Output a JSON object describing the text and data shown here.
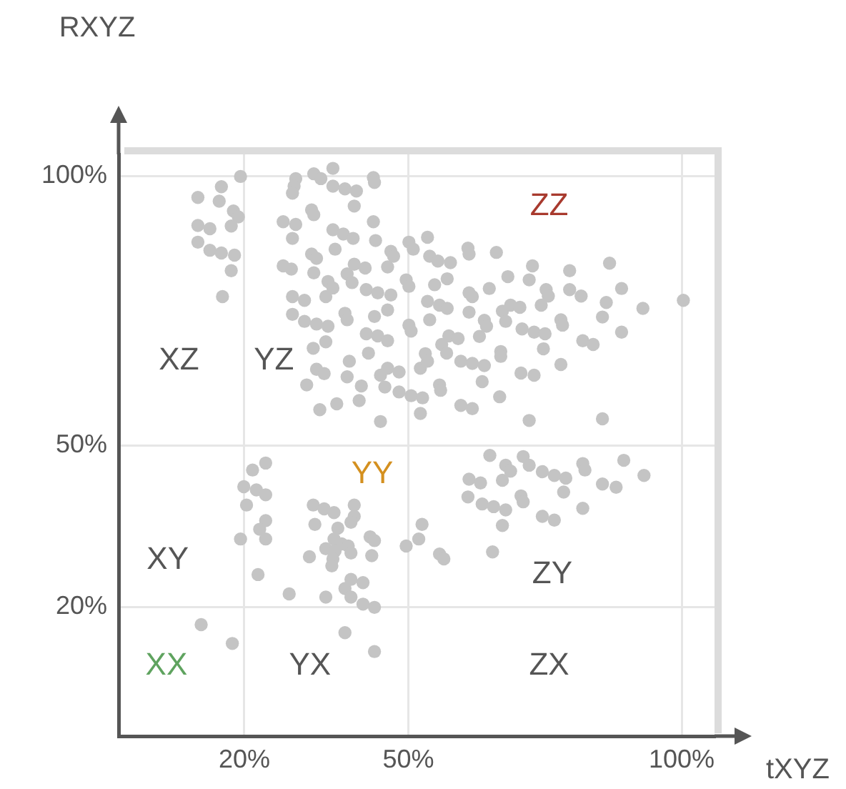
{
  "chart_data": {
    "type": "scatter",
    "xlabel": "tXYZ",
    "ylabel": "RXYZ",
    "color": "#c4c4c4",
    "marker": "circle",
    "grid": true,
    "xlim": [
      -3,
      106
    ],
    "ylim": [
      -4,
      104
    ],
    "xticks": [
      {
        "value": 20,
        "label": "20%"
      },
      {
        "value": 50,
        "label": "50%"
      },
      {
        "value": 100,
        "label": "100%"
      }
    ],
    "yticks": [
      {
        "value": 20,
        "label": "20%"
      },
      {
        "value": 50,
        "label": "50%"
      },
      {
        "value": 100,
        "label": "100%"
      }
    ],
    "annotations": [
      "XZ",
      "YZ",
      "ZZ",
      "XY",
      "YY",
      "ZY",
      "XX",
      "YX",
      "ZX"
    ],
    "x": [
      19.3,
      15.8,
      11.5,
      15.4,
      18.0,
      18.9,
      11.5,
      13.7,
      17.6,
      11.5,
      13.7,
      15.8,
      18.2,
      17.6,
      16.0,
      29.4,
      32.7,
      34.0,
      36.2,
      29.1,
      28.8,
      36.2,
      38.4,
      40.5,
      43.6,
      43.8,
      40.1,
      32.3,
      32.7,
      27.1,
      29.4,
      43.6,
      28.8,
      36.2,
      38.1,
      39.9,
      44.0,
      36.6,
      32.3,
      33.2,
      27.1,
      28.6,
      32.7,
      40.1,
      42.1,
      38.8,
      39.7,
      46.8,
      47.3,
      46.2,
      35.3,
      36.2,
      34.9,
      42.3,
      44.4,
      46.8,
      28.8,
      31.0,
      38.4,
      38.8,
      43.8,
      46.2,
      28.8,
      31.0,
      33.2,
      35.3,
      42.3,
      44.4,
      46.2,
      32.6,
      34.9,
      42.7,
      39.2,
      33.2,
      34.6,
      38.8,
      44.9,
      46.2,
      48.3,
      31.4,
      41.4,
      45.7,
      48.3,
      50.5,
      52.6,
      41.0,
      36.9,
      33.8,
      52.2,
      44.9,
      50.1,
      50.9,
      49.6,
      50.1,
      50.1,
      50.5,
      53.1,
      52.2,
      53.5,
      53.9,
      55.4,
      57.7,
      60.9,
      61.1,
      66.1,
      57.1,
      54.8,
      53.5,
      55.7,
      57.1,
      53.9,
      61.1,
      61.7,
      64.8,
      68.2,
      72.1,
      72.7,
      79.5,
      86.8,
      89.0,
      79.5,
      75.2,
      75.6,
      81.6,
      86.2,
      92.9,
      100.3,
      61.1,
      63.9,
      64.3,
      67.2,
      68.7,
      70.4,
      67.8,
      74.3,
      77.9,
      78.2,
      85.5,
      70.8,
      73.0,
      75.0,
      89.0,
      57.4,
      59.1,
      56.1,
      57.0,
      63.0,
      66.9,
      66.9,
      59.6,
      61.7,
      63.9,
      74.7,
      81.9,
      83.8,
      77.9,
      70.6,
      73.0,
      63.5,
      55.7,
      55.9,
      66.7,
      59.6,
      61.7,
      72.1,
      85.5,
      53.5,
      23.9,
      21.5,
      19.9,
      22.2,
      23.9,
      20.4,
      23.9,
      22.8,
      23.9,
      19.3,
      22.5,
      28.2,
      32.6,
      34.6,
      36.4,
      40.1,
      40.1,
      39.5,
      32.9,
      37.1,
      36.4,
      37.8,
      39.0,
      34.9,
      36.6,
      39.5,
      36.2,
      36.0,
      31.9,
      43.0,
      43.8,
      43.3,
      49.6,
      39.5,
      41.7,
      38.4,
      39.5,
      34.9,
      41.7,
      43.8,
      12.1,
      17.8,
      38.4,
      43.8,
      52.5,
      51.9,
      55.7,
      56.5,
      65.4,
      64.9,
      67.8,
      68.7,
      67.2,
      61.1,
      63.2,
      71.0,
      72.1,
      74.5,
      76.7,
      78.8,
      78.4,
      81.9,
      82.3,
      89.4,
      93.1,
      85.5,
      88.0,
      60.9,
      63.5,
      65.6,
      67.8,
      70.6,
      71.0,
      67.2,
      74.5,
      76.7,
      81.9
    ],
    "values": [
      99.9,
      98.0,
      96.0,
      95.3,
      93.5,
      92.4,
      90.8,
      90.2,
      90.7,
      87.7,
      86.2,
      85.7,
      85.3,
      82.4,
      77.6,
      99.5,
      100.4,
      99.5,
      101.4,
      98.1,
      96.8,
      98.1,
      97.6,
      97.2,
      99.7,
      98.8,
      94.4,
      93.7,
      92.8,
      91.5,
      91.0,
      91.5,
      88.4,
      90.0,
      89.2,
      88.4,
      88.0,
      86.4,
      85.5,
      84.7,
      83.3,
      82.7,
      82.0,
      83.6,
      82.9,
      81.8,
      80.2,
      86.0,
      85.1,
      83.1,
      80.4,
      79.2,
      77.6,
      78.9,
      78.3,
      77.9,
      77.6,
      76.9,
      74.5,
      73.3,
      73.9,
      75.1,
      74.3,
      73.0,
      72.5,
      72.1,
      70.7,
      70.3,
      69.4,
      68.0,
      69.2,
      67.1,
      65.6,
      64.1,
      63.3,
      62.7,
      63.0,
      64.3,
      63.6,
      61.2,
      61.0,
      60.8,
      59.9,
      59.2,
      58.8,
      58.3,
      57.7,
      56.6,
      55.9,
      54.4,
      87.7,
      86.4,
      80.7,
      79.5,
      72.3,
      71.2,
      67.0,
      64.3,
      88.6,
      85.1,
      84.2,
      83.9,
      86.6,
      85.5,
      85.8,
      80.9,
      79.8,
      76.7,
      76.0,
      75.4,
      73.3,
      78.3,
      77.6,
      79.1,
      81.3,
      80.7,
      83.3,
      82.4,
      83.8,
      79.1,
      78.9,
      78.9,
      77.7,
      77.7,
      76.5,
      75.4,
      76.9,
      74.7,
      73.2,
      72.1,
      74.9,
      76.0,
      75.6,
      73.0,
      76.0,
      73.3,
      72.3,
      73.8,
      71.6,
      71.0,
      70.7,
      71.0,
      70.3,
      69.8,
      68.7,
      67.1,
      70.2,
      67.4,
      66.5,
      65.6,
      65.2,
      64.8,
      67.9,
      69.4,
      68.7,
      65.0,
      63.4,
      63.0,
      61.8,
      61.2,
      60.2,
      59.0,
      57.4,
      56.8,
      54.6,
      54.9,
      65.6,
      46.7,
      45.4,
      42.3,
      41.7,
      40.8,
      38.9,
      36.0,
      34.4,
      32.6,
      32.6,
      26.0,
      22.4,
      38.9,
      38.2,
      37.5,
      38.9,
      36.8,
      35.7,
      35.3,
      34.6,
      32.6,
      31.7,
      31.3,
      30.8,
      30.4,
      30.0,
      28.9,
      27.6,
      29.3,
      33.0,
      32.3,
      29.5,
      31.3,
      25.1,
      24.5,
      23.4,
      21.8,
      21.8,
      20.5,
      19.9,
      16.7,
      13.2,
      15.2,
      11.7,
      35.3,
      32.6,
      29.8,
      28.9,
      30.2,
      48.1,
      46.3,
      45.2,
      43.5,
      43.7,
      43.0,
      47.9,
      46.3,
      45.1,
      44.4,
      43.9,
      41.3,
      46.6,
      45.4,
      47.2,
      44.4,
      42.8,
      42.2,
      40.4,
      39.1,
      38.6,
      38.0,
      40.6,
      39.5,
      35.1,
      36.8,
      36.1,
      38.3
    ]
  }
}
